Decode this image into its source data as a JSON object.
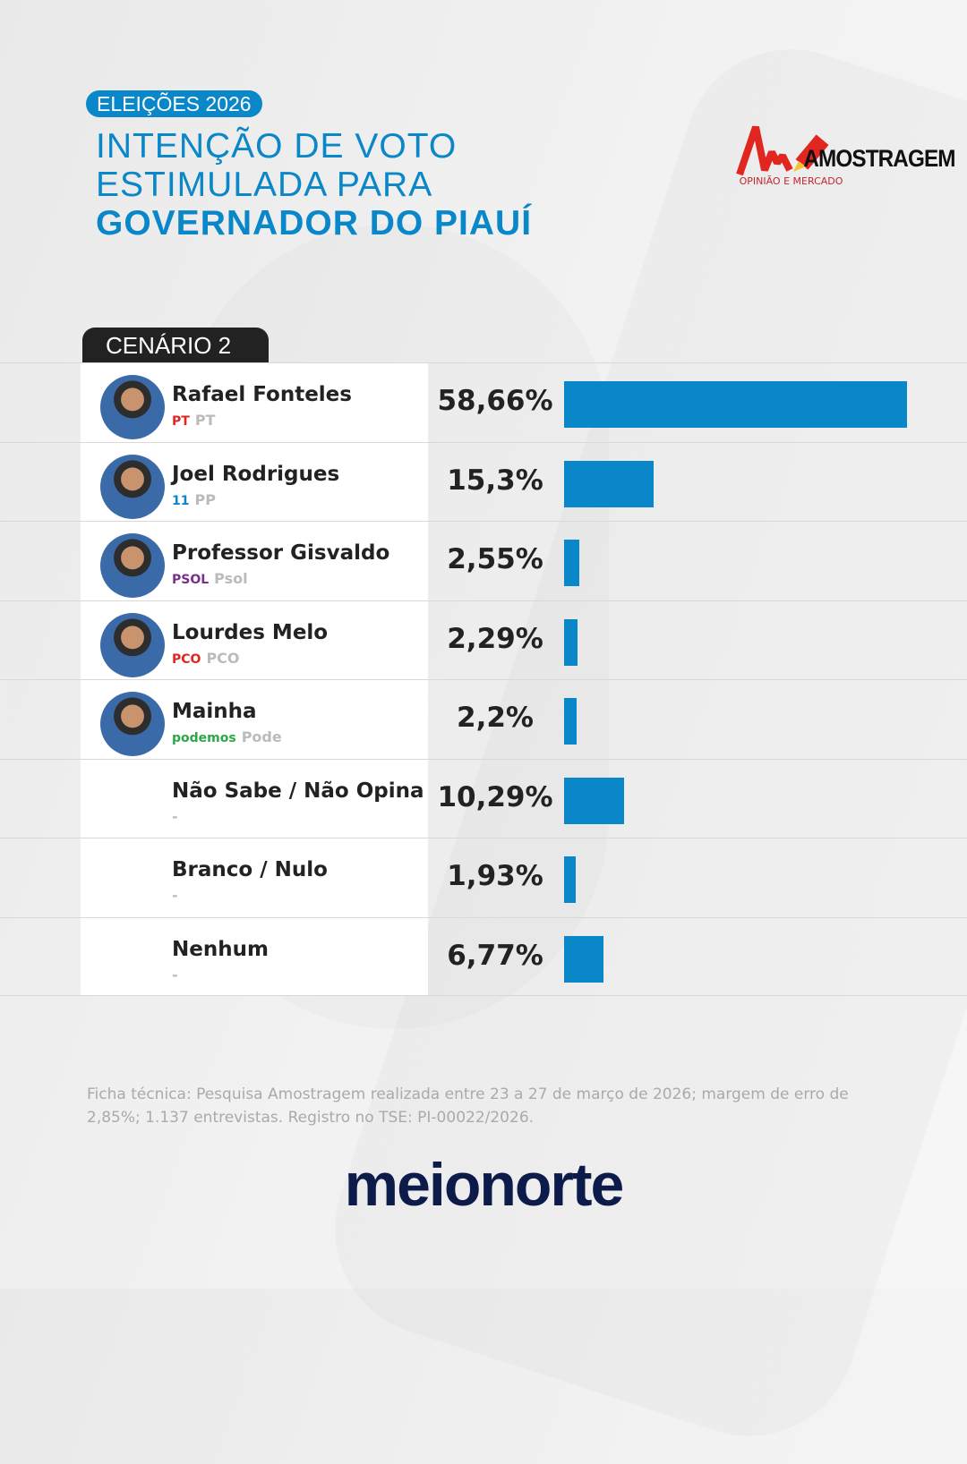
{
  "header": {
    "badge": "ELEIÇÕES 2026",
    "title_line1": "INTENÇÃO DE VOTO",
    "title_line2": "ESTIMULADA PARA",
    "title_line3": "GOVERNADOR DO PIAUÍ"
  },
  "pollster": {
    "name": "AMOSTRAGEM",
    "tagline": "OPINIÃO E MERCADO"
  },
  "scenario": "CENÁRIO 2",
  "colors": {
    "accent": "#0a87c8",
    "dark": "#222222",
    "brand": "#0d1b4b"
  },
  "chart_data": {
    "type": "bar",
    "title": "Intenção de voto estimulada para Governador do Piauí - Cenário 2",
    "categories": [
      "Rafael Fonteles",
      "Joel Rodrigues",
      "Professor Gisvaldo",
      "Lourdes Melo",
      "Mainha",
      "Não Sabe / Não Opina",
      "Branco / Nulo",
      "Nenhum"
    ],
    "parties": [
      "PT",
      "PP",
      "Psol",
      "PCO",
      "Pode",
      "-",
      "-",
      "-"
    ],
    "party_logos": [
      "PT",
      "11",
      "PSOL",
      "PCO",
      "podemos",
      "",
      "",
      ""
    ],
    "labels": [
      "58,66%",
      "15,3%",
      "2,55%",
      "2,29%",
      "2,2%",
      "10,29%",
      "1,93%",
      "6,77%"
    ],
    "values": [
      58.66,
      15.3,
      2.55,
      2.29,
      2.2,
      10.29,
      1.93,
      6.77
    ],
    "has_photo": [
      true,
      true,
      true,
      true,
      true,
      false,
      false,
      false
    ],
    "xlim": [
      0,
      58.66
    ]
  },
  "footer": {
    "note": "Ficha técnica: Pesquisa Amostragem realizada entre 23 a 27 de março de 2026; margem de erro de 2,85%; 1.137 entrevistas. Registro no TSE: PI-00022/2026.",
    "brand": "meionorte"
  }
}
